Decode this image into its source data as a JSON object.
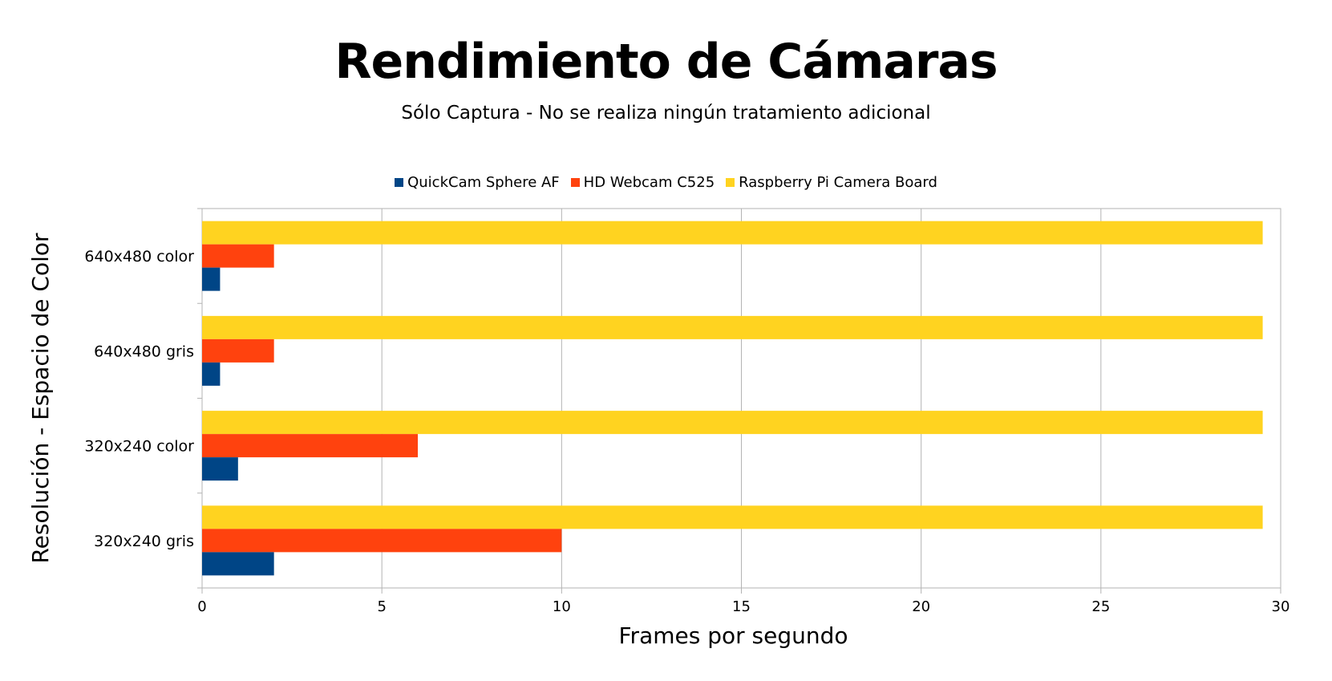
{
  "chart_data": {
    "type": "bar",
    "orientation": "horizontal",
    "title": "Rendimiento de Cámaras",
    "subtitle": "Sólo Captura - No se realiza ningún tratamiento adicional",
    "xlabel": "Frames por segundo",
    "ylabel": "Resolución -  Espacio de Color",
    "xlim": [
      0,
      30
    ],
    "xticks": [
      0,
      5,
      10,
      15,
      20,
      25,
      30
    ],
    "grid": true,
    "legend_position": "top",
    "categories": [
      "640x480 color",
      "640x480 gris",
      "320x240 color",
      "320x240 gris"
    ],
    "series": [
      {
        "name": "QuickCam Sphere AF",
        "color": "#004586",
        "values": [
          0.5,
          0.5,
          1,
          2
        ]
      },
      {
        "name": "HD Webcam C525",
        "color": "#ff420e",
        "values": [
          2,
          2,
          6,
          10
        ]
      },
      {
        "name": "Raspberry Pi Camera Board",
        "color": "#ffd320",
        "values": [
          29.5,
          29.5,
          29.5,
          29.5
        ]
      }
    ]
  }
}
